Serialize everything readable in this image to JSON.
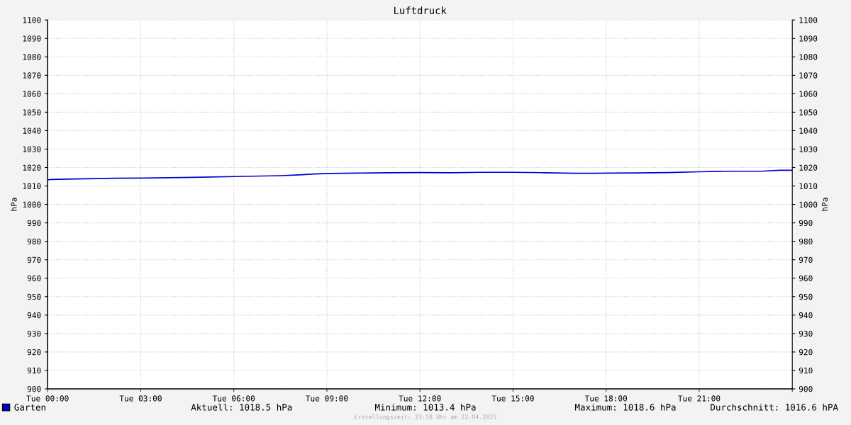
{
  "chart_data": {
    "type": "line",
    "title": "Luftdruck",
    "ylabel": "hPa",
    "y2label": "hPa",
    "x": [
      "2025-04-22T00:00",
      "2025-04-22T00:06",
      "2025-04-22T00:54",
      "2025-04-22T02:12",
      "2025-04-22T03:06",
      "2025-04-22T04:18",
      "2025-04-22T05:00",
      "2025-04-22T06:18",
      "2025-04-22T07:30",
      "2025-04-22T08:06",
      "2025-04-22T08:36",
      "2025-04-22T09:06",
      "2025-04-22T10:00",
      "2025-04-22T11:00",
      "2025-04-22T12:00",
      "2025-04-22T13:00",
      "2025-04-22T14:00",
      "2025-04-22T15:00",
      "2025-04-22T16:00",
      "2025-04-22T17:00",
      "2025-04-22T17:36",
      "2025-04-22T18:06",
      "2025-04-22T19:00",
      "2025-04-22T20:00",
      "2025-04-22T21:00",
      "2025-04-22T22:00",
      "2025-04-22T23:00",
      "2025-04-22T23:36",
      "2025-04-23T00:00"
    ],
    "series": [
      {
        "name": "Garten",
        "color": "#0000cc",
        "values": [
          1013.3,
          1013.5,
          1013.8,
          1014.2,
          1014.3,
          1014.6,
          1014.8,
          1015.2,
          1015.6,
          1016.0,
          1016.5,
          1016.8,
          1017.0,
          1017.2,
          1017.3,
          1017.2,
          1017.4,
          1017.4,
          1017.2,
          1016.9,
          1016.9,
          1017.0,
          1017.1,
          1017.3,
          1017.7,
          1018.0,
          1018.0,
          1018.5,
          1018.5
        ]
      }
    ],
    "xlim": [
      "2025-04-22T00:00",
      "2025-04-23T00:00"
    ],
    "xticks": [
      {
        "value": "2025-04-22T00:00",
        "label": "Tue 00:00"
      },
      {
        "value": "2025-04-22T03:00",
        "label": "Tue 03:00"
      },
      {
        "value": "2025-04-22T06:00",
        "label": "Tue 06:00"
      },
      {
        "value": "2025-04-22T09:00",
        "label": "Tue 09:00"
      },
      {
        "value": "2025-04-22T12:00",
        "label": "Tue 12:00"
      },
      {
        "value": "2025-04-22T15:00",
        "label": "Tue 15:00"
      },
      {
        "value": "2025-04-22T18:00",
        "label": "Tue 18:00"
      },
      {
        "value": "2025-04-22T21:00",
        "label": "Tue 21:00"
      },
      {
        "value": "2025-04-23T00:00",
        "label": null
      }
    ],
    "ylim": [
      900,
      1100
    ],
    "yticks": [
      900,
      910,
      920,
      930,
      940,
      950,
      960,
      970,
      980,
      990,
      1000,
      1010,
      1020,
      1030,
      1040,
      1050,
      1060,
      1070,
      1080,
      1090,
      1100
    ],
    "y2lim": [
      900,
      1100
    ],
    "y2ticks": [
      900,
      910,
      920,
      930,
      940,
      950,
      960,
      970,
      980,
      990,
      1000,
      1010,
      1020,
      1030,
      1040,
      1050,
      1060,
      1070,
      1080,
      1090,
      1100
    ],
    "grid": true,
    "legend": "bottom left",
    "line_style": "solid",
    "annotations": [
      "Aktuell: 1018.5 hPa",
      "Minimum: 1013.4 hPa",
      "Maximum: 1018.6 hPa",
      "Durchschnitt: 1016.6 hPA",
      "Erstellungszeit: 23:58 Uhr am 22.04.2025"
    ]
  }
}
